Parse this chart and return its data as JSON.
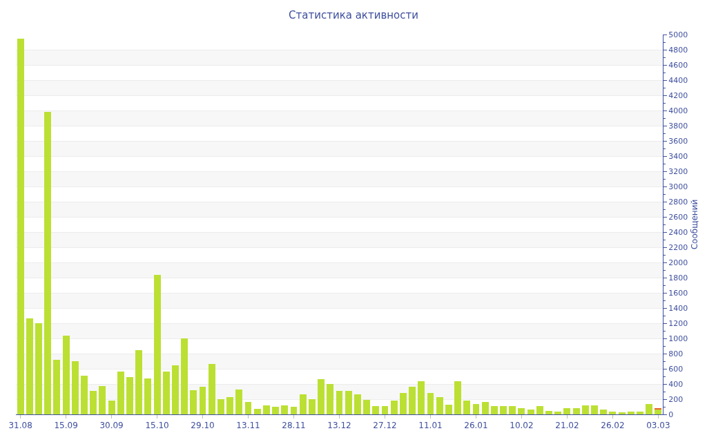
{
  "chart_data": {
    "type": "bar",
    "title": "Статистика активности",
    "ylabel": "Сообщений",
    "categories": [
      "31.08",
      null,
      null,
      null,
      null,
      "15.09",
      null,
      null,
      null,
      null,
      "30.09",
      null,
      null,
      null,
      null,
      "15.10",
      null,
      null,
      null,
      null,
      "29.10",
      null,
      null,
      null,
      null,
      "13.11",
      null,
      null,
      null,
      null,
      "28.11",
      null,
      null,
      null,
      null,
      "13.12",
      null,
      null,
      null,
      null,
      "27.12",
      null,
      null,
      null,
      null,
      "11.01",
      null,
      null,
      null,
      null,
      "26.01",
      null,
      null,
      null,
      null,
      "10.02",
      null,
      null,
      null,
      null,
      "21.02",
      null,
      null,
      null,
      null,
      "26.02",
      null,
      null,
      null,
      null,
      "03.03"
    ],
    "stacked": true,
    "series": [
      {
        "color": "#bbe033",
        "values": [
          4950,
          1260,
          1200,
          3980,
          720,
          1040,
          700,
          510,
          310,
          370,
          180,
          560,
          490,
          850,
          470,
          1840,
          560,
          650,
          1000,
          320,
          360,
          660,
          200,
          230,
          330,
          160,
          70,
          120,
          100,
          120,
          100,
          260,
          200,
          460,
          400,
          310,
          310,
          260,
          190,
          110,
          110,
          180,
          280,
          360,
          440,
          280,
          230,
          130,
          440,
          180,
          140,
          160,
          110,
          110,
          110,
          80,
          60,
          110,
          50,
          40,
          80,
          80,
          120,
          120,
          60,
          40,
          30,
          40,
          40,
          140,
          60
        ]
      },
      {
        "color": "#e8632a",
        "values": [
          null,
          null,
          null,
          null,
          null,
          null,
          null,
          null,
          null,
          null,
          null,
          null,
          null,
          null,
          null,
          null,
          null,
          null,
          null,
          null,
          null,
          null,
          null,
          null,
          null,
          null,
          null,
          null,
          null,
          null,
          null,
          null,
          null,
          null,
          null,
          null,
          null,
          null,
          null,
          null,
          null,
          null,
          null,
          null,
          null,
          null,
          null,
          null,
          null,
          null,
          null,
          null,
          null,
          null,
          null,
          null,
          null,
          null,
          null,
          null,
          null,
          null,
          null,
          null,
          null,
          null,
          null,
          null,
          null,
          null,
          20
        ]
      }
    ],
    "ylim": [
      0,
      5000
    ],
    "yticks": [
      0,
      200,
      400,
      600,
      800,
      1000,
      1200,
      1400,
      1600,
      1800,
      2000,
      2200,
      2400,
      2600,
      2800,
      3000,
      3200,
      3400,
      3600,
      3800,
      4000,
      4200,
      4400,
      4600,
      4800,
      5000
    ],
    "grid": "y"
  }
}
